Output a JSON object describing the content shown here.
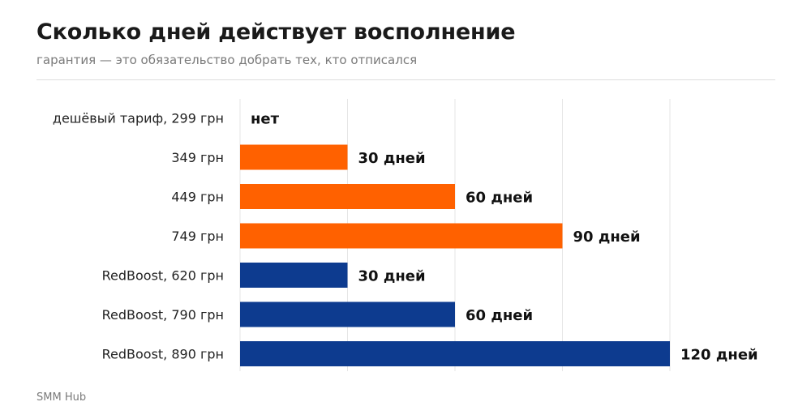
{
  "title": "Сколько дней действует восполнение",
  "subtitle": "гарантия — это обязательство добрать тех, кто отписался",
  "source": "SMM Hub",
  "colors": {
    "orange": "#ff6100",
    "blue": "#0d3b8f",
    "grid": "#e6e6e6",
    "label": "#222222",
    "value": "#111111"
  },
  "chart_data": {
    "type": "bar",
    "orientation": "horizontal",
    "title": "Сколько дней действует восполнение",
    "subtitle": "гарантия — это обязательство добрать тех, кто отписался",
    "xlim": [
      0,
      120
    ],
    "grid": true,
    "categories": [
      "дешёвый тариф, 299 грн",
      "349 грн",
      "449 грн",
      "749 грн",
      "RedBoost, 620 грн",
      "RedBoost, 790 грн",
      "RedBoost, 890 грн"
    ],
    "values": [
      0,
      30,
      60,
      90,
      30,
      60,
      120
    ],
    "value_labels": [
      "нет",
      "30 дней",
      "60 дней",
      "90 дней",
      "30 дней",
      "60 дней",
      "120 дней"
    ],
    "bar_colors": [
      "#ff6100",
      "#ff6100",
      "#ff6100",
      "#ff6100",
      "#0d3b8f",
      "#0d3b8f",
      "#0d3b8f"
    ]
  }
}
